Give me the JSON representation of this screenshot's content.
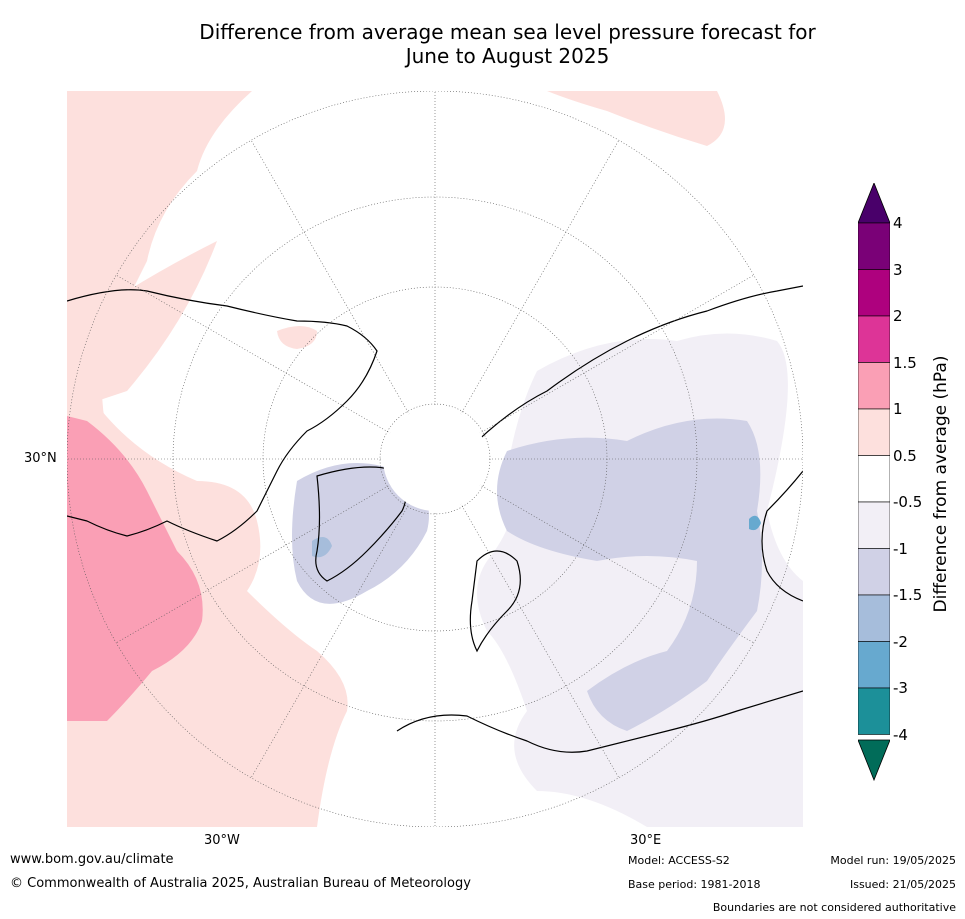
{
  "title_line1": "Difference from average mean sea level pressure forecast for",
  "title_line2": "June to August 2025",
  "graticule_labels": {
    "lat": "30°N",
    "lon_west": "30°W",
    "lon_east": "30°E"
  },
  "colorbar": {
    "title": "Difference from average (hPa)",
    "ticks": [
      "4",
      "3",
      "2",
      "1.5",
      "1",
      "0.5",
      "-0.5",
      "-1",
      "-1.5",
      "-2",
      "-3",
      "-4"
    ],
    "bins": [
      {
        "range": "3 to 4",
        "color": "#7a0177"
      },
      {
        "range": "2 to 3",
        "color": "#ae017e"
      },
      {
        "range": "1.5 to 2",
        "color": "#dd3497"
      },
      {
        "range": "1 to 1.5",
        "color": "#fa9fb5"
      },
      {
        "range": "0.5 to 1",
        "color": "#fde0dd"
      },
      {
        "range": "-0.5 to 0.5",
        "color": "#ffffff"
      },
      {
        "range": "-1 to -0.5",
        "color": "#f2eff6"
      },
      {
        "range": "-1.5 to -1",
        "color": "#d0d1e6"
      },
      {
        "range": "-2 to -1.5",
        "color": "#a6bddb"
      },
      {
        "range": "-3 to -2",
        "color": "#67a9cf"
      },
      {
        "range": "-4 to -3",
        "color": "#1c9099"
      }
    ],
    "over_color": "#49006a",
    "under_color": "#016c59"
  },
  "footer": {
    "url": "www.bom.gov.au/climate",
    "copyright": "© Commonwealth of Australia 2025, Australian Bureau of Meteorology",
    "model": "Model: ACCESS-S2",
    "base_period": "Base period: 1981-2018",
    "model_run": "Model run: 19/05/2025",
    "issued": "Issued: 21/05/2025",
    "disclaimer": "Boundaries are not considered authoritative"
  }
}
